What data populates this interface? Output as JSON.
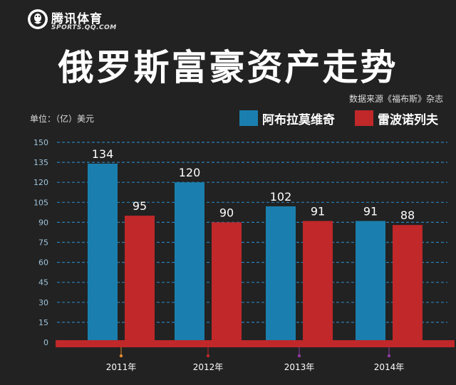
{
  "header": {
    "logo_name": "腾讯体育",
    "logo_url": "SPORTS.QQ.COM",
    "title": "俄罗斯富豪资产走势",
    "source": "数据来源《福布斯》杂志",
    "unit": "单位：（亿）美元"
  },
  "colors": {
    "background": "#222222",
    "series_blue": "#1a7fae",
    "series_red": "#c0282a",
    "grid": "#2c7fb6",
    "baseline": "#c0282a",
    "tick_marker_orange": "#e08a2c",
    "tick_marker_red": "#c0282a",
    "tick_marker_purple": "#8e3aa3"
  },
  "chart_data": {
    "type": "bar",
    "categories": [
      "2011年",
      "2012年",
      "2013年",
      "2014年"
    ],
    "series": [
      {
        "name": "阿布拉莫维奇",
        "values": [
          134,
          120,
          102,
          91
        ]
      },
      {
        "name": "雷波诺列夫",
        "values": [
          95,
          90,
          91,
          88
        ]
      }
    ],
    "yticks": [
      0,
      15,
      30,
      45,
      60,
      75,
      90,
      105,
      120,
      135,
      150
    ],
    "ylim": [
      0,
      150
    ],
    "grid": true,
    "legend_position": "top-right",
    "data_labels": true
  }
}
